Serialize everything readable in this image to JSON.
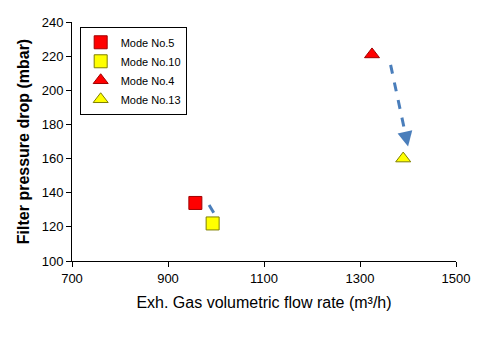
{
  "chart_data": {
    "type": "scatter",
    "x_label": "Exh. Gas volumetric flow rate (m³/h)",
    "y_label": "Filter pressure drop (mbar)",
    "series": [
      {
        "name": "Mode No.5",
        "color": "#ff0000",
        "marker": "square",
        "x": [
          957
        ],
        "values": [
          134
        ]
      },
      {
        "name": "Mode No.10",
        "color": "#ffff00",
        "marker": "square",
        "x": [
          993
        ],
        "values": [
          122
        ]
      },
      {
        "name": "Mode No.4",
        "color": "#ff0000",
        "marker": "triangle-up",
        "x": [
          1325
        ],
        "values": [
          221
        ]
      },
      {
        "name": "Mode No.13",
        "color": "#ffff00",
        "marker": "triangle-up",
        "x": [
          1390
        ],
        "values": [
          160
        ]
      }
    ],
    "xlim": [
      700,
      1500
    ],
    "xticks": [
      700,
      900,
      1100,
      1300,
      1500
    ],
    "ylim": [
      100,
      240
    ],
    "yticks": [
      100,
      120,
      140,
      160,
      180,
      200,
      220,
      240
    ],
    "grid": false,
    "legend": "upper left"
  }
}
